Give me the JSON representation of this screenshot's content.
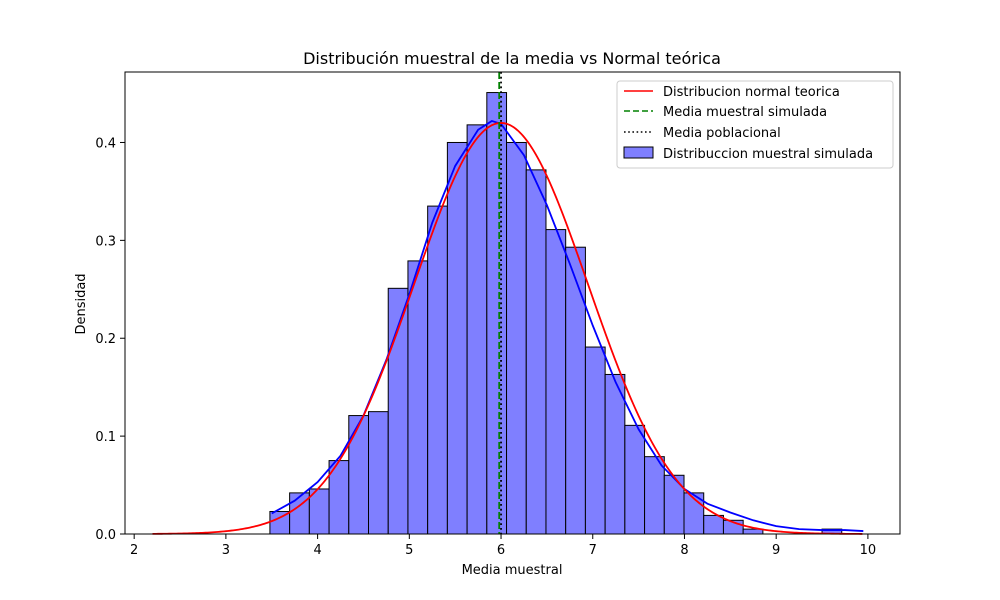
{
  "chart_data": {
    "type": "bar",
    "title": "Distribución muestral de la media vs Normal teórica",
    "xlabel": "Media muestral",
    "ylabel": "Densidad",
    "xlim": [
      1.9,
      10.35
    ],
    "ylim": [
      0,
      0.472
    ],
    "xticks": [
      2,
      3,
      4,
      5,
      6,
      7,
      8,
      9,
      10
    ],
    "yticks": [
      0.0,
      0.1,
      0.2,
      0.3,
      0.4
    ],
    "ytick_labels": [
      "0.0",
      "0.1",
      "0.2",
      "0.3",
      "0.4"
    ],
    "grid": false,
    "legend_position": "top-right",
    "histogram": {
      "name": "Distribuccion muestral simulada",
      "color": "#7f7fff",
      "edge_color": "#000000",
      "bin_start": 3.48,
      "bin_width": 0.215,
      "values": [
        0.023,
        0.042,
        0.046,
        0.075,
        0.121,
        0.125,
        0.251,
        0.279,
        0.335,
        0.4,
        0.418,
        0.451,
        0.4,
        0.372,
        0.311,
        0.293,
        0.191,
        0.163,
        0.111,
        0.079,
        0.06,
        0.042,
        0.019,
        0.014,
        0.005,
        0.0,
        0.0,
        0.0,
        0.005
      ]
    },
    "normal_curve": {
      "name": "Distribucion normal teorica",
      "color": "#ff0000",
      "mean": 6.0,
      "sd": 0.95,
      "x_range": [
        2.2,
        9.95
      ]
    },
    "kde_curve": {
      "color": "#0000ff",
      "x": [
        3.5,
        3.75,
        4.0,
        4.25,
        4.5,
        4.75,
        5.0,
        5.25,
        5.5,
        5.75,
        5.9,
        6.0,
        6.25,
        6.5,
        6.75,
        7.0,
        7.25,
        7.5,
        7.75,
        8.0,
        8.25,
        8.5,
        8.75,
        9.0,
        9.25,
        9.5,
        9.75,
        9.95
      ],
      "y": [
        0.021,
        0.034,
        0.053,
        0.08,
        0.121,
        0.178,
        0.245,
        0.318,
        0.376,
        0.413,
        0.422,
        0.419,
        0.387,
        0.336,
        0.276,
        0.213,
        0.155,
        0.107,
        0.07,
        0.046,
        0.031,
        0.022,
        0.014,
        0.008,
        0.005,
        0.004,
        0.004,
        0.003
      ]
    },
    "sample_mean_line": {
      "name": "Media muestral simulada",
      "x": 5.98,
      "color": "#008000"
    },
    "population_mean_line": {
      "name": "Media poblacional",
      "x": 6.0,
      "color": "#000000"
    }
  }
}
